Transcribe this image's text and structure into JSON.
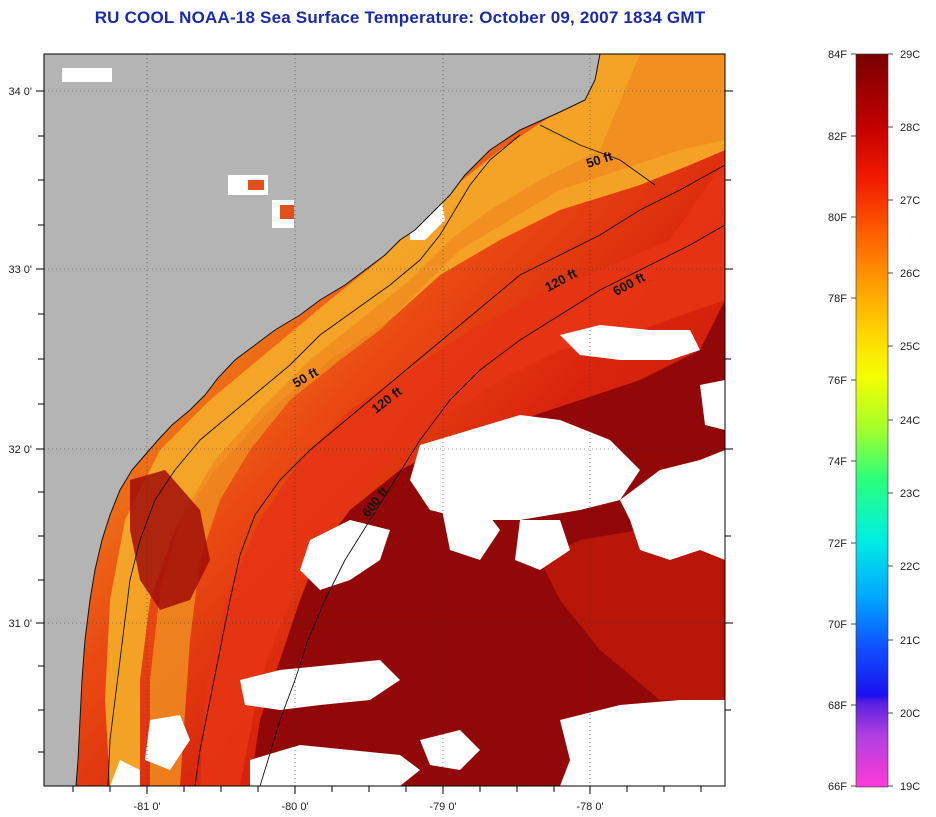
{
  "title": "RU COOL  NOAA-18  Sea Surface Temperature:  October 09, 2007 1834 GMT",
  "map": {
    "lon_ticks": [
      {
        "value": -81,
        "label": "-81 0'"
      },
      {
        "value": -80,
        "label": "-80 0'"
      },
      {
        "value": -79,
        "label": "-79 0'"
      },
      {
        "value": -78,
        "label": "-78 0'"
      }
    ],
    "lat_ticks": [
      {
        "value": 34,
        "label": "34 0'"
      },
      {
        "value": 33,
        "label": "33 0'"
      },
      {
        "value": 32,
        "label": "32 0'"
      },
      {
        "value": 31,
        "label": "31 0'"
      }
    ],
    "contour_labels": [
      {
        "id": "c50a",
        "text": "50 ft"
      },
      {
        "id": "c50b",
        "text": "50 ft"
      },
      {
        "id": "c120a",
        "text": "120 ft"
      },
      {
        "id": "c120b",
        "text": "120 ft"
      },
      {
        "id": "c600a",
        "text": "600 ft"
      },
      {
        "id": "c600b",
        "text": "600 ft"
      }
    ],
    "colors": {
      "land": "#b4b4b4",
      "cloud": "#ffffff",
      "nearshore": "#f3a21f",
      "shelf": "#ea3a12",
      "stream": "#8f0606"
    }
  },
  "colorbar": {
    "f_labels": [
      "84F",
      "82F",
      "80F",
      "78F",
      "76F",
      "74F",
      "72F",
      "70F",
      "68F",
      "66F"
    ],
    "c_labels": [
      "29C",
      "28C",
      "27C",
      "26C",
      "25C",
      "24C",
      "23C",
      "22C",
      "21C",
      "20C",
      "19C"
    ]
  }
}
